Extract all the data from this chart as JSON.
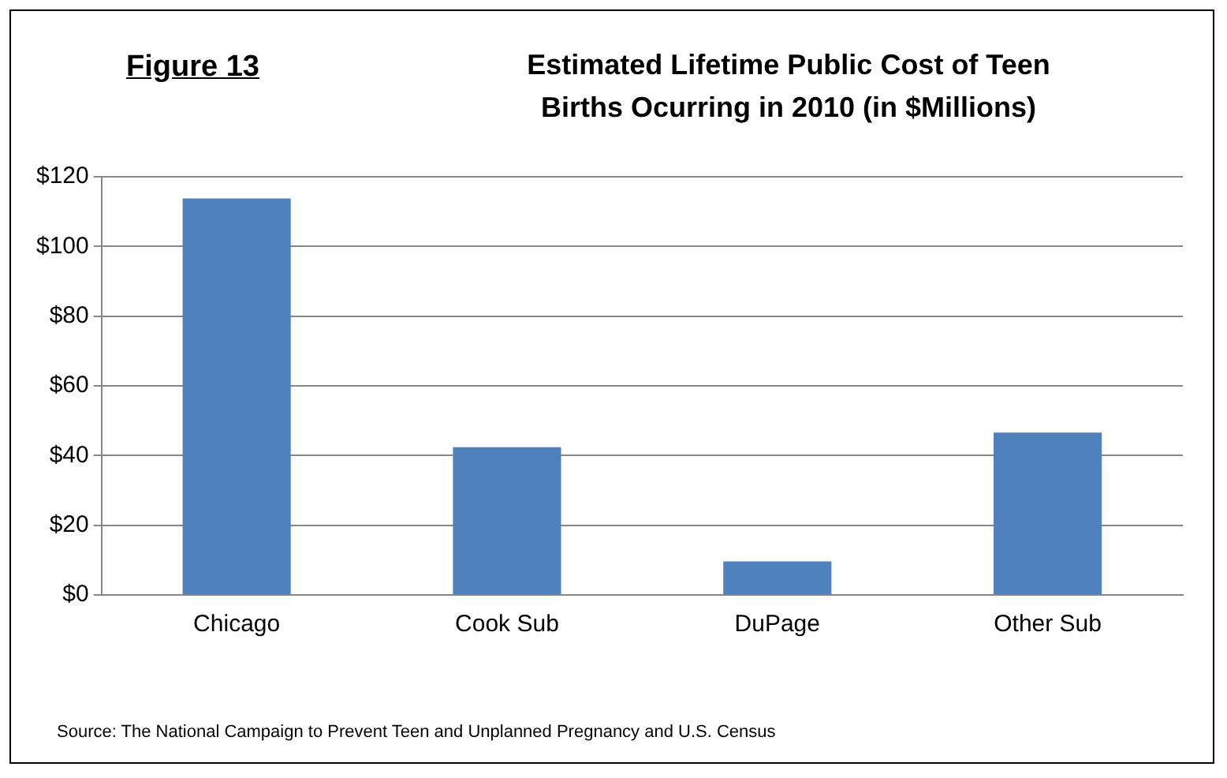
{
  "chart_data": {
    "type": "bar",
    "title": "Estimated Lifetime Public Cost of Teen Births  Ocurring in 2010 (in $Millions)",
    "categories": [
      "Chicago",
      "Cook Sub",
      "DuPage",
      "Other Sub"
    ],
    "values": [
      113.8,
      42.4,
      9.6,
      46.6
    ],
    "color": "#4f81bd",
    "ylim": [
      0,
      120
    ],
    "yticks": [
      {
        "value": 0,
        "label": "$0"
      },
      {
        "value": 20,
        "label": "$20"
      },
      {
        "value": 40,
        "label": "$40"
      },
      {
        "value": 60,
        "label": "$60"
      },
      {
        "value": 80,
        "label": "$80"
      },
      {
        "value": 100,
        "label": "$100"
      },
      {
        "value": 120,
        "label": "$120"
      }
    ],
    "grid": "y",
    "annotations": [
      "Figure 13",
      "Source: The National Campaign to Prevent Teen and Unplanned Pregnancy and U.S. Census"
    ]
  }
}
